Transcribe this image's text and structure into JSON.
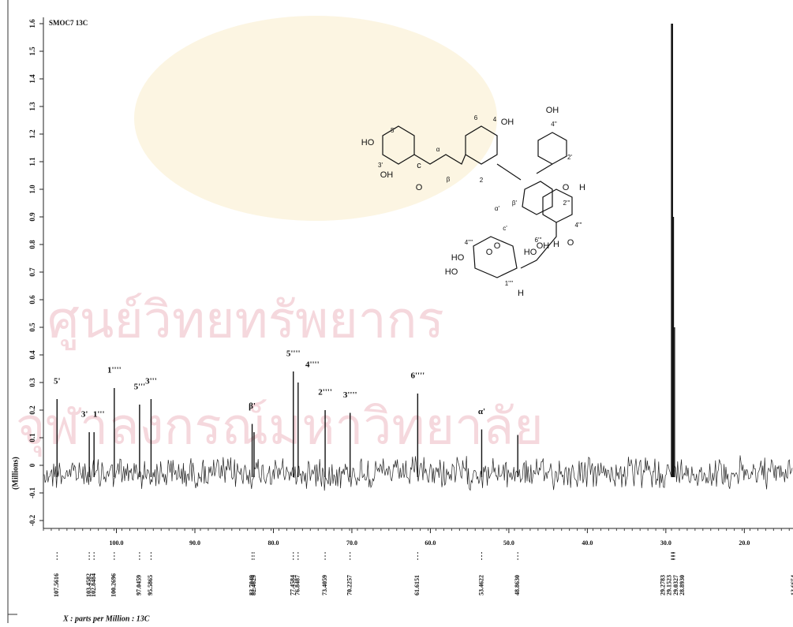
{
  "chart_data": {
    "type": "spectrum",
    "title": "SMOC7 13C",
    "y_label": "(Millions)",
    "x_label": "X : parts per Million : 13C",
    "watermark": [
      "ศูนย์วิทยทรัพยากร",
      "จุฬาลงกรณ์มหาวิทยาลัย"
    ],
    "xlim": [
      109.3,
      13.8
    ],
    "ylim": [
      -0.2,
      1.6
    ],
    "xticks": [
      {
        "value": 100,
        "label": "100.0"
      },
      {
        "value": 90,
        "label": "90.0"
      },
      {
        "value": 80,
        "label": "80.0"
      },
      {
        "value": 70,
        "label": "70.0"
      },
      {
        "value": 60,
        "label": "60.0"
      },
      {
        "value": 50,
        "label": "50.0"
      },
      {
        "value": 40,
        "label": "40.0"
      },
      {
        "value": 30,
        "label": "30.0"
      },
      {
        "value": 20,
        "label": "20.0"
      }
    ],
    "yticks": [
      -0.2,
      -0.1,
      {
        "value": 0,
        "label": "0"
      },
      0.1,
      0.2,
      0.3,
      0.4,
      0.5,
      0.6,
      0.7,
      0.8,
      0.9,
      {
        "value": 1,
        "label": "1.0"
      },
      1.1,
      1.2,
      1.3,
      1.4,
      1.5,
      1.6
    ],
    "color": "#111111",
    "x": [
      107.5616,
      103.4582,
      102.8484,
      100.2696,
      97.0459,
      95.5865,
      82.7049,
      82.4629,
      77.4584,
      76.8487,
      73.4059,
      70.2257,
      61.6151,
      53.4622,
      48.863,
      29.2783,
      29.1523,
      29.0327,
      28.893,
      13.6654
    ],
    "x_labels": [
      "107.5616",
      "103.4582",
      "102.8484",
      "100.2696",
      "97.0459",
      "95.5865",
      "82.7049",
      "82.4629",
      "77.4584",
      "76.8487",
      "73.4059",
      "70.2257",
      "61.6151",
      "53.4622",
      "48.8630",
      "29.2783",
      "29.1523",
      "29.0327",
      "28.8930",
      "13.6654"
    ],
    "values": [
      0.24,
      0.12,
      0.12,
      0.28,
      0.22,
      0.24,
      0.15,
      0.12,
      0.34,
      0.3,
      0.2,
      0.19,
      0.26,
      0.13,
      0.11,
      1.6,
      1.6,
      0.9,
      0.5,
      0.05
    ],
    "assignments": [
      "5'",
      "3'",
      "1'''",
      "1''''",
      "5'''",
      "3'''",
      "β'",
      null,
      "5''''",
      "4''''",
      "2''''",
      "3''''",
      "6''''",
      "α'",
      null,
      null,
      null,
      null,
      null,
      null
    ]
  },
  "structure": {
    "labels": [
      "OH",
      "4''",
      "2'",
      "HO",
      "5'",
      "3'",
      "OH",
      "O",
      "c",
      "α",
      "β",
      "6",
      "4",
      "OH",
      "2",
      "α'",
      "β'",
      "O",
      "c'",
      "O",
      "H",
      "2'''",
      "4'''",
      "HO",
      "6'''",
      "O",
      "H",
      "OH",
      "4''''",
      "HO",
      "HO",
      "O",
      "1''''",
      "H"
    ]
  }
}
